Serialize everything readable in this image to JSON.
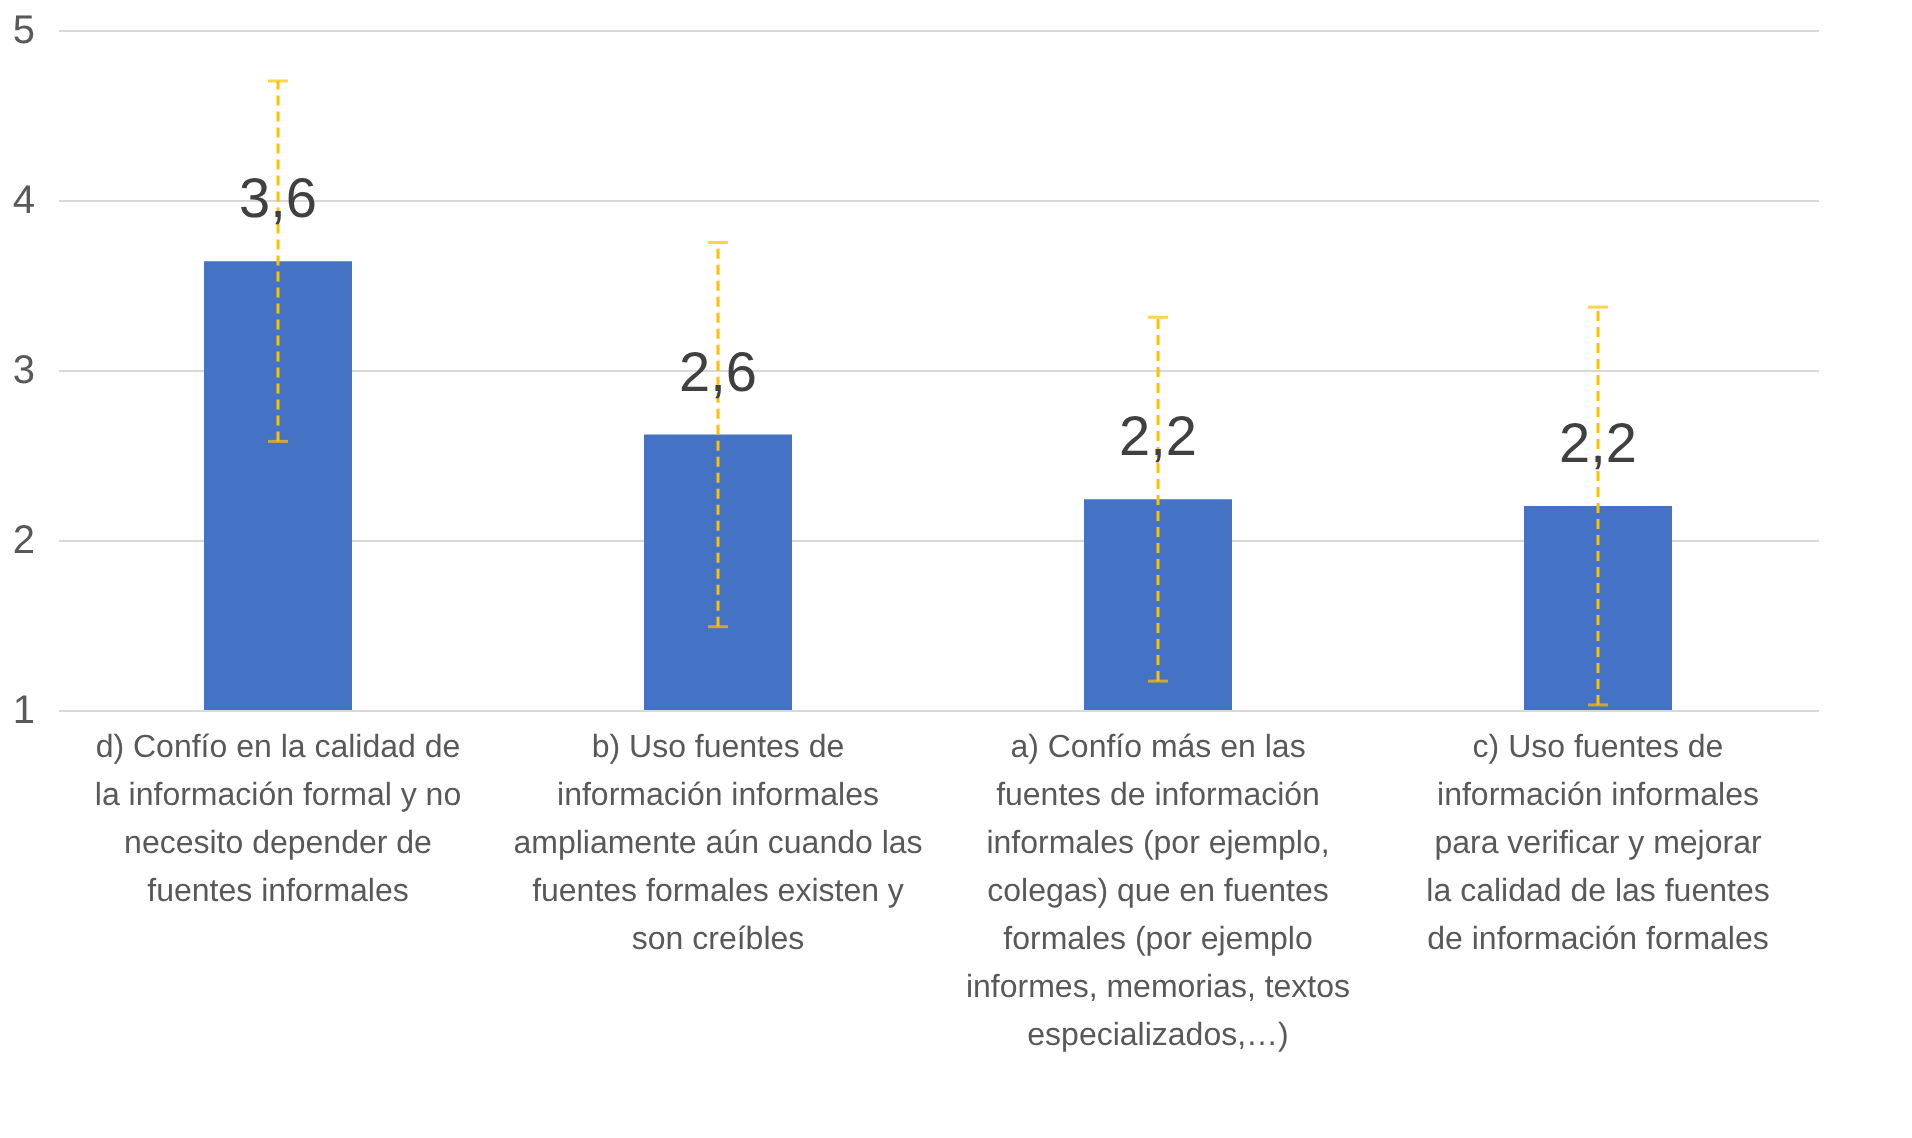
{
  "chart_data": {
    "type": "bar",
    "categories": [
      "d) Confío en la calidad de la información formal y no necesito depender de fuentes informales",
      "b) Uso fuentes de información informales ampliamente aún cuando las fuentes formales existen y son creíbles",
      "a) Confío más en las fuentes de información informales (por ejemplo, colegas) que en fuentes formales (por ejemplo informes, memorias, textos especializados,…)",
      "c) Uso fuentes de información informales para verificar y mejorar la calidad de las fuentes de información formales"
    ],
    "values": [
      3.64,
      2.62,
      2.24,
      2.2
    ],
    "errors": [
      1.06,
      1.13,
      1.07,
      1.17
    ],
    "value_labels": [
      "3,6",
      "2,6",
      "2,2",
      "2,2"
    ],
    "colors": [
      "#4472c4",
      "#4472c4",
      "#4472c4",
      "#4472c4"
    ],
    "ylim": [
      1,
      5
    ],
    "yticks": [
      1,
      2,
      3,
      4,
      5
    ],
    "grid": "y"
  }
}
